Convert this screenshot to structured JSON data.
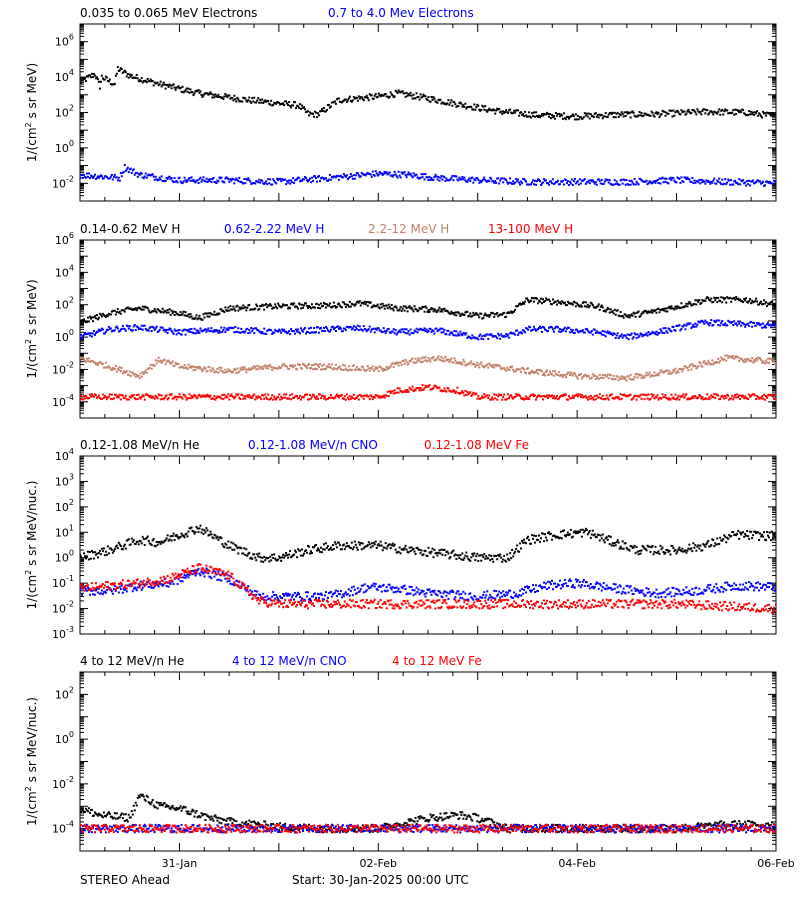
{
  "colors": {
    "black": "#000000",
    "blue": "#0000ff",
    "tan": "#c38269",
    "red": "#ff0000"
  },
  "footer": {
    "left": "STEREO Ahead",
    "center": "Start: 30-Jan-2025 00:00 UTC"
  },
  "chart_data": [
    {
      "type": "scatter",
      "panel": "electrons",
      "ylabel_html": "1/(cm2 s sr MeV)",
      "ylog": true,
      "ylim": [
        0.001,
        10000000
      ],
      "xlim_days": [
        0,
        7
      ],
      "yticks": [
        {
          "exp": "-2"
        },
        {
          "exp": "0"
        },
        {
          "exp": "2"
        },
        {
          "exp": "4"
        },
        {
          "exp": "6"
        }
      ],
      "series": [
        {
          "name": "0.035 to 0.065 MeV Electrons",
          "color": "#000000",
          "x": [
            0,
            0.15,
            0.2,
            0.22,
            0.35,
            0.38,
            0.5,
            0.8,
            1.2,
            1.7,
            2.2,
            2.3,
            2.4,
            2.6,
            3.0,
            3.2,
            3.4,
            3.8,
            4.2,
            4.6,
            5.0,
            5.4,
            5.8,
            6.3,
            6.7,
            7.0
          ],
          "y": [
            5000,
            15000,
            3000,
            10000,
            4000,
            30000,
            12000,
            4000,
            1200,
            500,
            250,
            80,
            80,
            500,
            800,
            1200,
            800,
            300,
            120,
            70,
            60,
            75,
            80,
            110,
            100,
            60
          ]
        },
        {
          "name": "0.7 to 4.0 Mev Electrons",
          "color": "#0000ff",
          "x": [
            0,
            0.4,
            0.45,
            0.6,
            1.0,
            1.5,
            2.0,
            2.5,
            3.0,
            3.3,
            3.6,
            4.0,
            4.5,
            5.0,
            5.5,
            6.0,
            6.5,
            7.0
          ],
          "y": [
            0.03,
            0.02,
            0.08,
            0.03,
            0.015,
            0.015,
            0.012,
            0.02,
            0.035,
            0.03,
            0.02,
            0.015,
            0.012,
            0.012,
            0.012,
            0.015,
            0.012,
            0.01
          ]
        }
      ]
    },
    {
      "type": "scatter",
      "panel": "protons",
      "ylabel_html": "1/(cm2 s sr MeV)",
      "ylog": true,
      "ylim": [
        1e-05,
        1000000
      ],
      "xlim_days": [
        0,
        7
      ],
      "yticks": [
        {
          "exp": "-4"
        },
        {
          "exp": "-2"
        },
        {
          "exp": "0"
        },
        {
          "exp": "2"
        },
        {
          "exp": "4"
        },
        {
          "exp": "6"
        }
      ],
      "series": [
        {
          "name": "0.14-0.62 MeV H",
          "color": "#000000",
          "x": [
            0,
            0.3,
            0.6,
            1.0,
            1.2,
            1.5,
            2.0,
            2.5,
            2.8,
            3.2,
            3.6,
            4.0,
            4.3,
            4.5,
            4.8,
            5.2,
            5.5,
            5.8,
            6.3,
            6.7,
            7.0
          ],
          "y": [
            8,
            30,
            60,
            30,
            15,
            60,
            80,
            90,
            120,
            60,
            50,
            20,
            25,
            200,
            150,
            80,
            20,
            40,
            200,
            200,
            100
          ]
        },
        {
          "name": "0.62-2.22 MeV H",
          "color": "#0000ff",
          "x": [
            0,
            0.3,
            0.6,
            1.0,
            1.5,
            2.0,
            2.5,
            2.8,
            3.2,
            3.6,
            4.0,
            4.3,
            4.5,
            4.8,
            5.2,
            5.5,
            5.8,
            6.3,
            6.7,
            7.0
          ],
          "y": [
            1,
            3,
            4,
            2,
            3,
            2,
            3,
            3.5,
            2,
            2.5,
            1,
            1.2,
            3,
            3,
            2,
            1,
            2,
            8,
            6,
            5
          ]
        },
        {
          "name": "2.2-12 MeV H",
          "color": "#c38269",
          "x": [
            0,
            0.3,
            0.6,
            0.8,
            1.0,
            1.5,
            2.0,
            2.5,
            3.0,
            3.3,
            3.6,
            4.0,
            4.5,
            5.0,
            5.5,
            6.0,
            6.5,
            7.0
          ],
          "y": [
            0.05,
            0.015,
            0.004,
            0.04,
            0.015,
            0.008,
            0.015,
            0.015,
            0.01,
            0.03,
            0.05,
            0.02,
            0.008,
            0.004,
            0.003,
            0.008,
            0.05,
            0.03
          ]
        },
        {
          "name": "13-100 MeV H",
          "color": "#ff0000",
          "x": [
            0,
            0.5,
            1.0,
            1.5,
            2.0,
            2.5,
            3.0,
            3.2,
            3.5,
            3.8,
            4.0,
            4.5,
            5.0,
            5.5,
            6.0,
            6.5,
            7.0
          ],
          "y": [
            0.0002,
            0.0002,
            0.0002,
            0.0002,
            0.0002,
            0.0002,
            0.0002,
            0.0005,
            0.0008,
            0.0005,
            0.0002,
            0.0002,
            0.0002,
            0.0002,
            0.0002,
            0.0002,
            0.0002
          ]
        }
      ]
    },
    {
      "type": "scatter",
      "panel": "ions-low",
      "ylabel_html": "1/(cm2 s sr MeV/nuc.)",
      "ylog": true,
      "ylim": [
        0.001,
        10000
      ],
      "xlim_days": [
        0,
        7
      ],
      "yticks": [
        {
          "exp": "-3"
        },
        {
          "exp": "-2"
        },
        {
          "exp": "-1"
        },
        {
          "exp": "0"
        },
        {
          "exp": "1"
        },
        {
          "exp": "2"
        },
        {
          "exp": "3"
        },
        {
          "exp": "4"
        }
      ],
      "series": [
        {
          "name": "0.12-1.08 MeV/n He",
          "color": "#000000",
          "x": [
            0,
            0.3,
            0.6,
            0.8,
            1.0,
            1.2,
            1.5,
            1.8,
            2.0,
            2.3,
            2.6,
            3.0,
            3.3,
            3.6,
            4.0,
            4.3,
            4.5,
            4.8,
            5.1,
            5.3,
            5.6,
            6.0,
            6.3,
            6.6,
            7.0
          ],
          "y": [
            1,
            2,
            5,
            4,
            8,
            15,
            3,
            1,
            1,
            2,
            3,
            3,
            2,
            1.5,
            1,
            1,
            5,
            8,
            10,
            5,
            2,
            2,
            3,
            8,
            7
          ]
        },
        {
          "name": "0.12-1.08 MeV/n CNO",
          "color": "#0000ff",
          "x": [
            0,
            0.3,
            0.6,
            0.9,
            1.2,
            1.5,
            1.8,
            2.0,
            2.5,
            2.9,
            3.2,
            3.5,
            4.0,
            4.4,
            4.7,
            5.0,
            5.4,
            5.8,
            6.2,
            6.6,
            7.0
          ],
          "y": [
            0.05,
            0.05,
            0.08,
            0.1,
            0.3,
            0.15,
            0.03,
            0.03,
            0.03,
            0.07,
            0.06,
            0.04,
            0.03,
            0.04,
            0.08,
            0.1,
            0.06,
            0.04,
            0.05,
            0.08,
            0.07
          ]
        },
        {
          "name": "0.12-1.08 MeV Fe",
          "color": "#ff0000",
          "x": [
            0,
            0.3,
            0.6,
            0.9,
            1.2,
            1.5,
            1.8,
            2.0,
            3.0,
            4.0,
            5.0,
            6.0,
            7.0
          ],
          "y": [
            0.06,
            0.08,
            0.1,
            0.15,
            0.4,
            0.2,
            0.02,
            0.015,
            0.015,
            0.015,
            0.015,
            0.015,
            0.01
          ]
        }
      ]
    },
    {
      "type": "scatter",
      "panel": "ions-high",
      "ylabel_html": "1/(cm2 s sr MeV/nuc.)",
      "ylog": true,
      "ylim": [
        1e-05,
        1000
      ],
      "xlim_days": [
        0,
        7
      ],
      "xticks": [
        {
          "day": 1,
          "label": "31-Jan"
        },
        {
          "day": 3,
          "label": "02-Feb"
        },
        {
          "day": 5,
          "label": "04-Feb"
        },
        {
          "day": 7,
          "label": "06-Feb"
        }
      ],
      "yticks": [
        {
          "exp": "-4"
        },
        {
          "exp": "-2"
        },
        {
          "exp": "0"
        },
        {
          "exp": "2"
        }
      ],
      "series": [
        {
          "name": "4 to 12 MeV/n He",
          "color": "#000000",
          "x": [
            0,
            0.2,
            0.5,
            0.6,
            0.8,
            1.0,
            1.3,
            1.5,
            1.8,
            2.0,
            2.5,
            3.0,
            3.5,
            3.8,
            4.0,
            4.3,
            5.0,
            6.0,
            6.5,
            7.0
          ],
          "y": [
            0.0008,
            0.0004,
            0.0003,
            0.003,
            0.001,
            0.0008,
            0.0003,
            0.0002,
            0.00015,
            0.00012,
            0.0001,
            0.0001,
            0.0003,
            0.0004,
            0.0003,
            0.0001,
            0.0001,
            0.0001,
            0.00015,
            0.00015
          ]
        },
        {
          "name": "4 to 12 MeV/n CNO",
          "color": "#0000ff",
          "x": [
            0,
            1,
            2,
            3,
            4,
            5,
            6,
            7
          ],
          "y": [
            0.0001,
            0.0001,
            0.0001,
            0.0001,
            0.0001,
            0.0001,
            0.0001,
            0.0001
          ]
        },
        {
          "name": "4 to 12 MeV Fe",
          "color": "#ff0000",
          "x": [
            0,
            0.5,
            1.0,
            1.5,
            2.0
          ],
          "y": [
            0.0001,
            0.0001,
            0.0001,
            0.0001,
            0.0001
          ]
        }
      ]
    }
  ]
}
